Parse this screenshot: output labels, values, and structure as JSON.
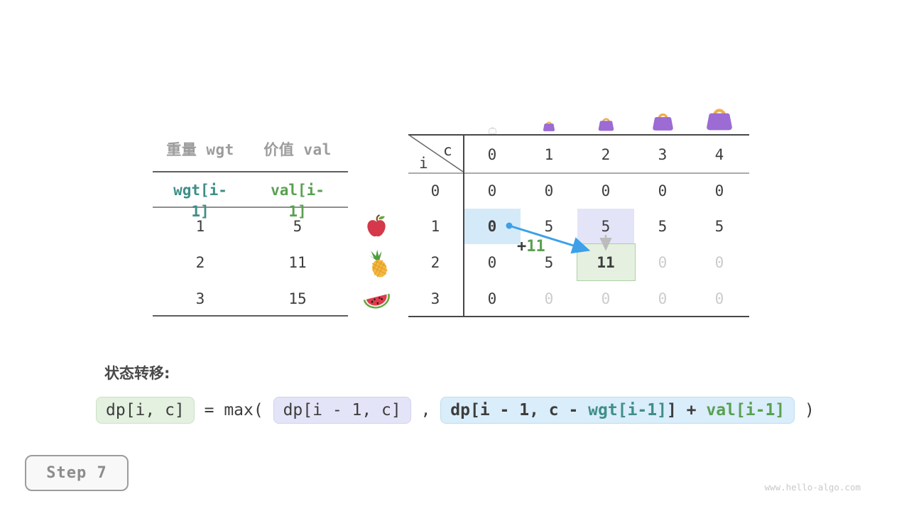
{
  "colors": {
    "accent_blue": "#3da0e8",
    "teal": "#3f8e89",
    "green": "#5aa052",
    "dark": "#3d3d3d",
    "dim_gray": "#cccccc",
    "gray_header": "#9c9c9c",
    "cell_blue_bg": "#d5eaf8",
    "cell_lavender_bg": "#e3e4f8",
    "cell_green_bg": "#e5f0e1",
    "cell_green_border": "#abd2a4",
    "bag_purple": "#9c6bd3",
    "bag_handle": "#f0ae4e"
  },
  "items_table": {
    "col_headers": [
      "重量 wgt",
      "价值 val"
    ],
    "index_labels": [
      {
        "text": "wgt[i-1]",
        "color": "teal"
      },
      {
        "text": "val[i-1]",
        "color": "green"
      }
    ],
    "rows": [
      [
        "1",
        "5"
      ],
      [
        "2",
        "11"
      ],
      [
        "3",
        "15"
      ]
    ]
  },
  "fruit_icons": [
    "apple-icon",
    "pineapple-icon",
    "watermelon-icon"
  ],
  "dp_table": {
    "corner_col_var": "c",
    "corner_row_var": "i",
    "col_headers": [
      "0",
      "1",
      "2",
      "3",
      "4"
    ],
    "row_headers": [
      "0",
      "1",
      "2",
      "3"
    ],
    "bag_icons": [
      {
        "name": "bag-capacity-0-icon",
        "style": "empty",
        "size": 13
      },
      {
        "name": "bag-capacity-1-icon",
        "style": "filled",
        "size": 20
      },
      {
        "name": "bag-capacity-2-icon",
        "style": "filled",
        "size": 27
      },
      {
        "name": "bag-capacity-3-icon",
        "style": "filled",
        "size": 35
      },
      {
        "name": "bag-capacity-4-icon",
        "style": "filled",
        "size": 44
      }
    ],
    "cells": [
      [
        {
          "v": "0"
        },
        {
          "v": "0"
        },
        {
          "v": "0"
        },
        {
          "v": "0"
        },
        {
          "v": "0"
        }
      ],
      [
        {
          "v": "0",
          "bold": true,
          "hl": "blue"
        },
        {
          "v": "5"
        },
        {
          "v": "5",
          "hl": "lavender"
        },
        {
          "v": "5"
        },
        {
          "v": "5"
        }
      ],
      [
        {
          "v": "0"
        },
        {
          "v": "5"
        },
        {
          "v": "11",
          "bold": true,
          "hl": "green"
        },
        {
          "v": "0",
          "dim": true
        },
        {
          "v": "0",
          "dim": true
        }
      ],
      [
        {
          "v": "0"
        },
        {
          "v": "0",
          "dim": true
        },
        {
          "v": "0",
          "dim": true
        },
        {
          "v": "0",
          "dim": true
        },
        {
          "v": "0",
          "dim": true
        }
      ]
    ],
    "transition_label": {
      "prefix": "+",
      "value": "11"
    }
  },
  "formula": {
    "heading": "状态转移:",
    "lhs": "dp[i, c]",
    "equals": " = ",
    "max_open": "max( ",
    "arg1": "dp[i - 1, c]",
    "comma": " , ",
    "arg2_segments": [
      {
        "text": "dp[i - 1, c - ",
        "color": "dark"
      },
      {
        "text": "wgt[i-1]",
        "color": "teal"
      },
      {
        "text": "]",
        "color": "dark"
      },
      {
        "text": " + ",
        "color": "dark"
      },
      {
        "text": "val[i-1]",
        "color": "green"
      }
    ],
    "close_paren": " )"
  },
  "step_badge": {
    "label": "Step 7"
  },
  "watermark": {
    "text": "www.hello-algo.com"
  }
}
